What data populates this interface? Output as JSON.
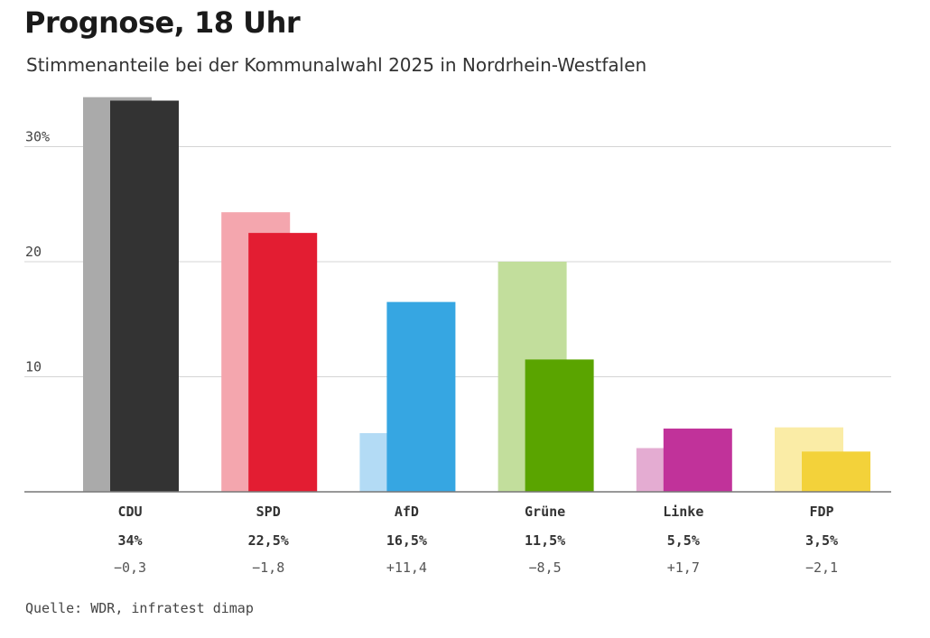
{
  "header": {
    "title": "Prognose, 18 Uhr",
    "subtitle": "Stimmenanteile bei der Kommunalwahl 2025 in Nordrhein-Westfalen"
  },
  "footer": {
    "source": "Quelle: WDR, infratest dimap"
  },
  "chart_data": {
    "type": "bar",
    "title": "Prognose, 18 Uhr",
    "subtitle": "Stimmenanteile bei der Kommunalwahl 2025 in Nordrhein-Westfalen",
    "ylim": [
      0,
      34
    ],
    "yticks": [
      10,
      20,
      30
    ],
    "ytick_labels": [
      "10",
      "20",
      "30%"
    ],
    "grid": true,
    "categories": [
      "CDU",
      "SPD",
      "AfD",
      "Grüne",
      "Linke",
      "FDP"
    ],
    "series": [
      {
        "values": [
          34.3,
          24.3,
          5.1,
          20.0,
          3.8,
          5.6
        ],
        "colors": [
          "#aaaaaa",
          "#f4a6ae",
          "#b3dbf5",
          "#c2de9c",
          "#e4acd2",
          "#faeca6"
        ]
      },
      {
        "values": [
          34,
          22.5,
          16.5,
          11.5,
          5.5,
          3.5
        ],
        "colors": [
          "#333333",
          "#e31d32",
          "#36a6e2",
          "#5aa400",
          "#c1329a",
          "#f3d23a"
        ]
      }
    ],
    "value_labels": [
      "34%",
      "22,5%",
      "16,5%",
      "11,5%",
      "5,5%",
      "3,5%"
    ],
    "diff_labels": [
      "−0,3",
      "−1,8",
      "+11,4",
      "−8,5",
      "+1,7",
      "−2,1"
    ]
  }
}
